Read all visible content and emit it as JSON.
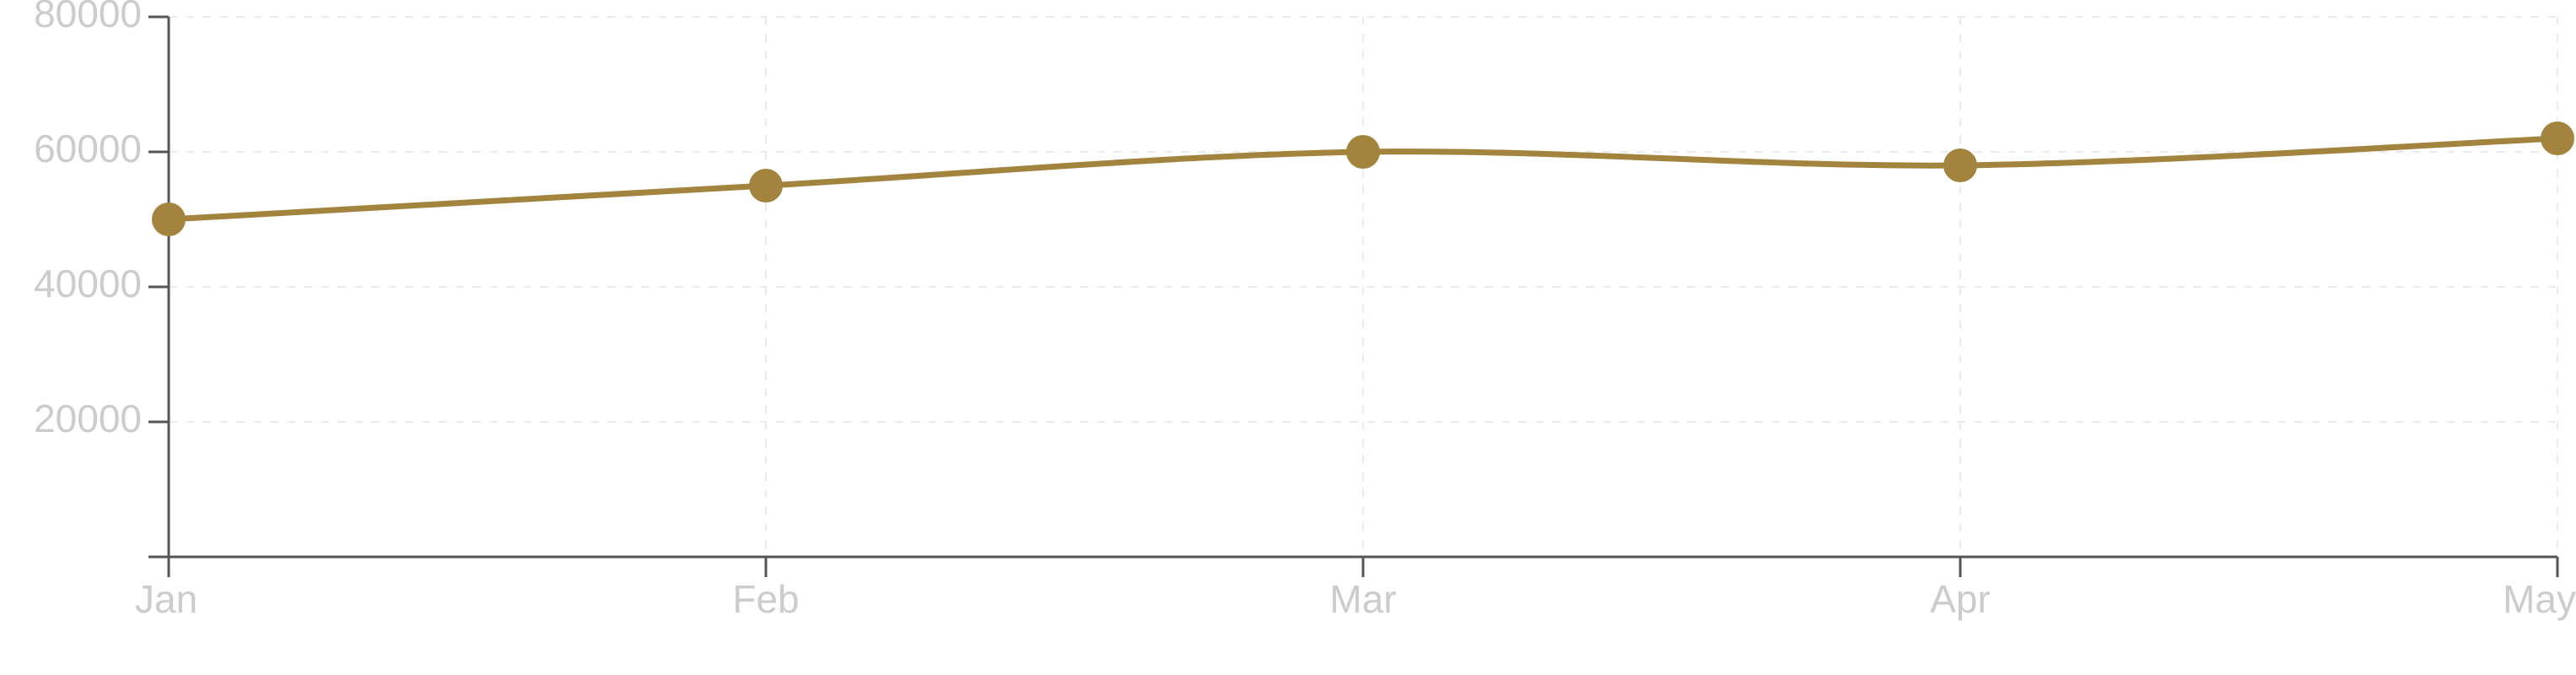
{
  "chart_data": {
    "type": "line",
    "categories": [
      "Jan",
      "Feb",
      "Mar",
      "Apr",
      "May"
    ],
    "series": [
      {
        "values": [
          50000,
          55000,
          60000,
          58000,
          62000
        ]
      }
    ],
    "title": "",
    "xlabel": "",
    "ylabel": "",
    "ylim": [
      0,
      80000
    ],
    "yticks": [
      20000,
      40000,
      60000,
      80000
    ],
    "grid": true,
    "legend": "none",
    "curve": "smooth"
  },
  "colors": {
    "series": "#a2843f",
    "axis": "#555555",
    "grid": "#ebebeb",
    "tick_label": "#cccccc",
    "background": "#ffffff"
  }
}
